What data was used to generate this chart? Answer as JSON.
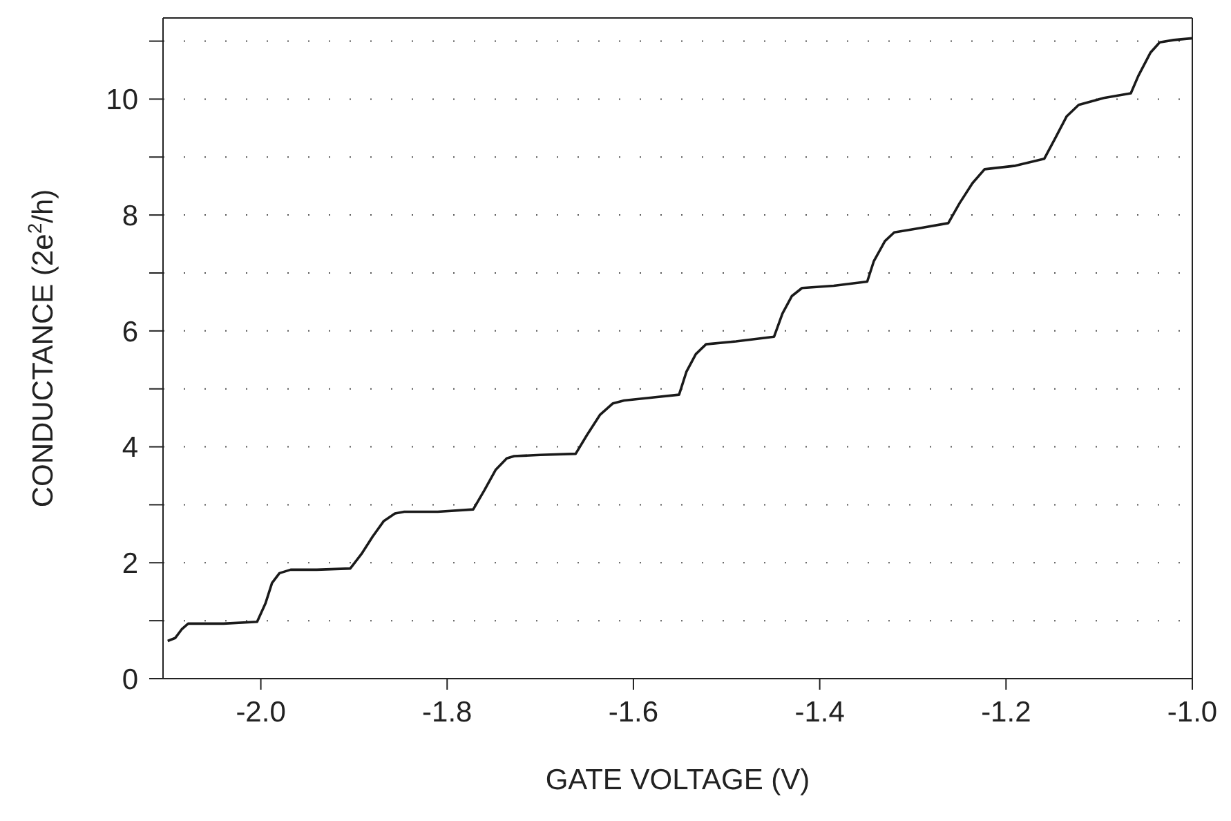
{
  "chart_data": {
    "type": "line",
    "xlabel": "GATE  VOLTAGE    (V)",
    "ylabel": "CONDUCTANCE (2e$^{2}$/h)",
    "xlim": [
      -2.105,
      -1.0
    ],
    "ylim": [
      0,
      11.4
    ],
    "xticks": [
      {
        "value": -2.0,
        "label": "-2.0"
      },
      {
        "value": -1.8,
        "label": "-1.8"
      },
      {
        "value": -1.6,
        "label": "-1.6"
      },
      {
        "value": -1.4,
        "label": "-1.4"
      },
      {
        "value": -1.2,
        "label": "-1.2"
      },
      {
        "value": -1.0,
        "label": "-1.0"
      }
    ],
    "yticks": [
      0,
      {
        "value": 1,
        "label": null
      },
      2,
      {
        "value": 3,
        "label": null
      },
      4,
      {
        "value": 5,
        "label": null
      },
      6,
      {
        "value": 7,
        "label": null
      },
      8,
      {
        "value": 9,
        "label": null
      },
      10,
      {
        "value": 11,
        "label": null
      }
    ],
    "grid": "y",
    "marker": "none",
    "line_style": "solid",
    "series": [
      {
        "color": "#1a1a1a",
        "x": [
          -2.1,
          -2.092,
          -2.085,
          -2.078,
          -2.04,
          -2.004,
          -1.995,
          -1.988,
          -1.98,
          -1.968,
          -1.94,
          -1.904,
          -1.892,
          -1.88,
          -1.868,
          -1.856,
          -1.846,
          -1.81,
          -1.772,
          -1.76,
          -1.748,
          -1.736,
          -1.728,
          -1.7,
          -1.662,
          -1.65,
          -1.636,
          -1.622,
          -1.61,
          -1.58,
          -1.551,
          -1.543,
          -1.533,
          -1.522,
          -1.49,
          -1.449,
          -1.44,
          -1.43,
          -1.419,
          -1.385,
          -1.349,
          -1.342,
          -1.33,
          -1.32,
          -1.29,
          -1.262,
          -1.25,
          -1.236,
          -1.223,
          -1.19,
          -1.159,
          -1.148,
          -1.135,
          -1.122,
          -1.095,
          -1.066,
          -1.058,
          -1.045,
          -1.035,
          -1.02,
          -1.0
        ],
        "values": [
          0.65,
          0.7,
          0.85,
          0.95,
          0.95,
          0.98,
          1.3,
          1.65,
          1.82,
          1.88,
          1.88,
          1.9,
          2.15,
          2.45,
          2.72,
          2.85,
          2.88,
          2.88,
          2.92,
          3.25,
          3.6,
          3.8,
          3.84,
          3.86,
          3.88,
          4.2,
          4.55,
          4.75,
          4.8,
          4.85,
          4.9,
          5.3,
          5.6,
          5.77,
          5.82,
          5.9,
          6.3,
          6.6,
          6.74,
          6.78,
          6.85,
          7.2,
          7.55,
          7.7,
          7.78,
          7.86,
          8.2,
          8.55,
          8.79,
          8.85,
          8.97,
          9.3,
          9.7,
          9.9,
          10.02,
          10.1,
          10.4,
          10.8,
          10.98,
          11.02,
          11.05
        ]
      }
    ]
  }
}
